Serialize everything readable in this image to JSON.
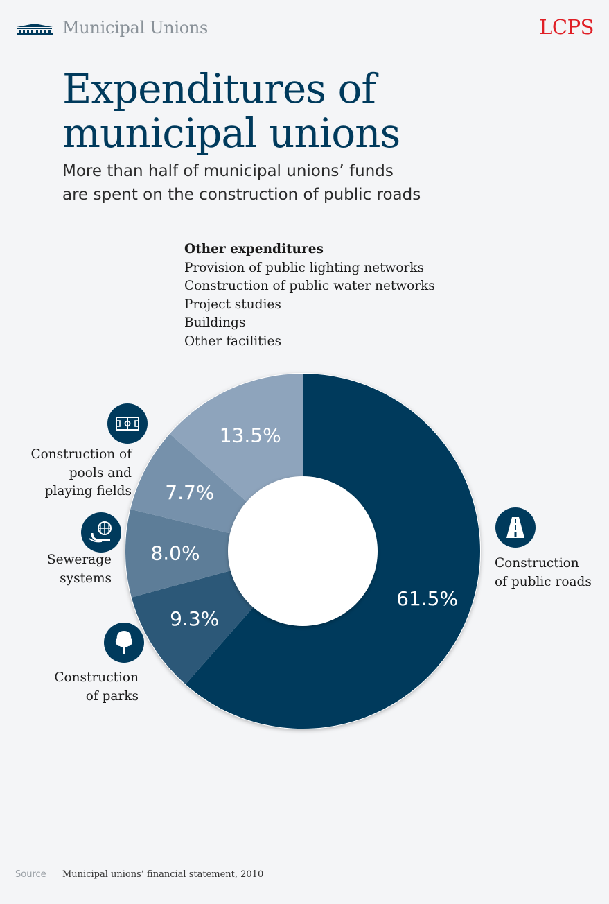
{
  "header": {
    "section": "Municipal Unions",
    "brand": "LCPS"
  },
  "title_lines": [
    "Expenditures of",
    "municipal unions"
  ],
  "subtitle_lines": [
    "More than half of municipal unions’ funds",
    "are spent on the construction of public roads"
  ],
  "other_expenditures": {
    "title": "Other expenditures",
    "items": [
      "Provision of public lighting networks",
      "Construction of public water networks",
      "Project studies",
      "Buildings",
      "Other facilities"
    ]
  },
  "chart_data": {
    "type": "pie",
    "donut": true,
    "slices": [
      {
        "label": "Construction of public roads",
        "value": 61.5,
        "display": "61.5%",
        "color": "#003a5c"
      },
      {
        "label": "Construction of parks",
        "value": 9.3,
        "display": "9.3%",
        "color": "#2c5878"
      },
      {
        "label": "Sewerage systems",
        "value": 8.0,
        "display": "8.0%",
        "color": "#5d7d98"
      },
      {
        "label": "Construction of pools and playing fields",
        "value": 7.7,
        "display": "7.7%",
        "color": "#7691ab"
      },
      {
        "label": "Other expenditures",
        "value": 13.5,
        "display": "13.5%",
        "color": "#8ea4bc"
      }
    ]
  },
  "category_labels": {
    "roads": [
      "Construction",
      "of public roads"
    ],
    "parks": [
      "Construction",
      "of parks"
    ],
    "sewerage": [
      "Sewerage",
      "systems"
    ],
    "pools": [
      "Construction of",
      "pools and",
      "playing fields"
    ]
  },
  "icons": {
    "roads": "road-icon",
    "parks": "tree-icon",
    "sewerage": "sewer-pipe-icon",
    "pools": "playing-field-icon",
    "header": "building-columns-icon"
  },
  "source": {
    "label": "Source",
    "text": "Municipal unions’ financial statement, 2010"
  }
}
